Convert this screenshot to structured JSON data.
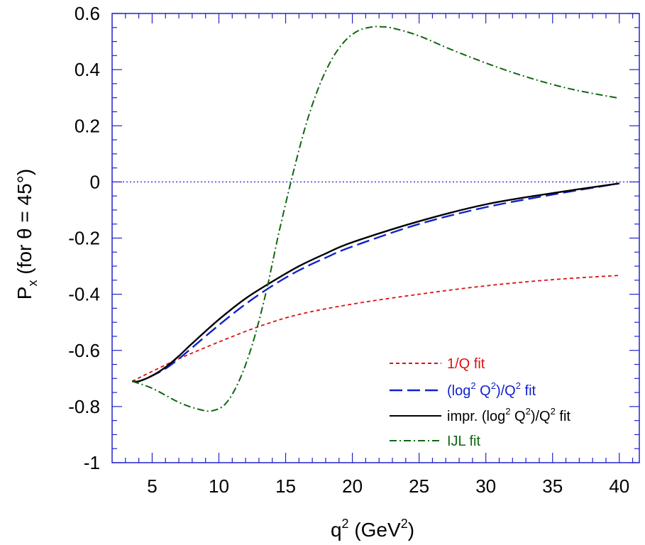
{
  "chart_data": {
    "type": "line",
    "xlabel": {
      "base": "q",
      "sup": "2",
      "rest": "  (GeV",
      "sup2": "2",
      "close": ")"
    },
    "ylabel": {
      "base": "P",
      "sub": "x",
      "rest": "  (for θ = 45°)"
    },
    "xlim": [
      2,
      41.5
    ],
    "ylim": [
      -1,
      0.6
    ],
    "xticks": [
      5,
      10,
      15,
      20,
      25,
      30,
      35,
      40
    ],
    "xtick_labels": [
      "5",
      "10",
      "15",
      "20",
      "25",
      "30",
      "35",
      "40"
    ],
    "yticks": [
      -1,
      -0.8,
      -0.6,
      -0.4,
      -0.2,
      0,
      0.2,
      0.4,
      0.6
    ],
    "ytick_labels": [
      "-1",
      "-0.8",
      "-0.6",
      "-0.4",
      "-0.2",
      "0",
      "0.2",
      "0.4",
      "0.6"
    ],
    "reference_line": {
      "y": 0,
      "style": "dotted",
      "color": "#2222dd"
    },
    "axis_color": "#2222cc",
    "legend_position": "lower-right",
    "series": [
      {
        "name": "1/Q fit",
        "color": "#dd1111",
        "style": "dashed",
        "x": [
          3.5,
          5,
          7,
          10,
          13,
          16,
          20,
          25,
          30,
          35,
          40
        ],
        "y": [
          -0.71,
          -0.675,
          -0.63,
          -0.57,
          -0.515,
          -0.472,
          -0.435,
          -0.4,
          -0.37,
          -0.348,
          -0.333
        ]
      },
      {
        "name_parts": {
          "a": "(log",
          "sup1": "2",
          "b": " Q",
          "sup2": "2",
          "c": ")/Q",
          "sup3": "2",
          "d": " fit"
        },
        "color": "#1122cc",
        "style": "longdash",
        "x": [
          3.5,
          4,
          5,
          6,
          7,
          8,
          10,
          12,
          14,
          16,
          18,
          20,
          25,
          30,
          35,
          40
        ],
        "y": [
          -0.71,
          -0.71,
          -0.69,
          -0.665,
          -0.63,
          -0.59,
          -0.51,
          -0.435,
          -0.37,
          -0.315,
          -0.27,
          -0.23,
          -0.15,
          -0.09,
          -0.045,
          -0.005
        ]
      },
      {
        "name_parts": {
          "a": "impr. (log",
          "sup1": "2",
          "b": " Q",
          "sup2": "2",
          "c": ")/Q",
          "sup3": "2",
          "d": " fit"
        },
        "color": "#000000",
        "style": "solid",
        "x": [
          3.5,
          4,
          5,
          6,
          7,
          8,
          10,
          12,
          14,
          16,
          18,
          20,
          25,
          30,
          35,
          40
        ],
        "y": [
          -0.71,
          -0.71,
          -0.69,
          -0.66,
          -0.62,
          -0.575,
          -0.49,
          -0.415,
          -0.355,
          -0.3,
          -0.255,
          -0.215,
          -0.14,
          -0.08,
          -0.04,
          -0.005
        ]
      },
      {
        "name": "IJL fit",
        "color": "#116611",
        "style": "dashdot",
        "x": [
          3.5,
          5,
          7,
          8.5,
          9.5,
          10.5,
          11.5,
          12.5,
          13.5,
          14.5,
          15.5,
          16.5,
          17.5,
          18.5,
          19.5,
          20.5,
          21.5,
          22,
          23,
          25,
          28,
          32,
          36,
          40
        ],
        "y": [
          -0.71,
          -0.735,
          -0.785,
          -0.81,
          -0.815,
          -0.79,
          -0.71,
          -0.58,
          -0.4,
          -0.18,
          0.02,
          0.2,
          0.34,
          0.44,
          0.505,
          0.54,
          0.552,
          0.553,
          0.548,
          0.52,
          0.46,
          0.39,
          0.335,
          0.298
        ]
      }
    ]
  }
}
